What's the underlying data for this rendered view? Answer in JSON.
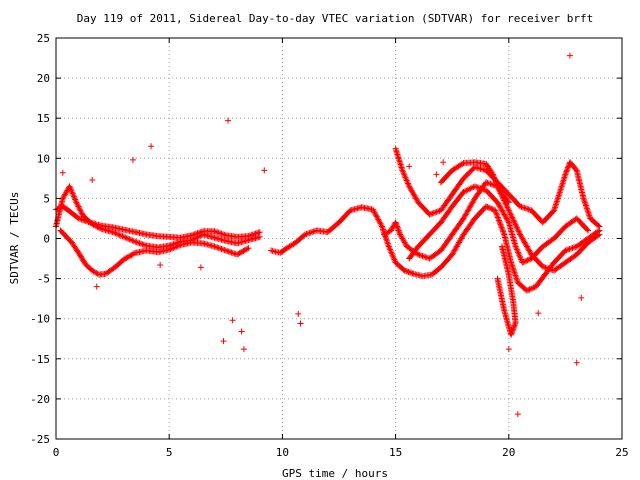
{
  "chart_data": {
    "type": "scatter",
    "title": "Day 119 of 2011, Sidereal Day-to-day VTEC variation (SDTVAR) for receiver brft",
    "xlabel": "GPS time / hours",
    "ylabel": "SDTVAR / TECUs",
    "xlim": [
      0,
      25
    ],
    "ylim": [
      -25,
      25
    ],
    "xticks": [
      0,
      5,
      10,
      15,
      20,
      25
    ],
    "yticks": [
      25,
      20,
      15,
      10,
      5,
      0,
      -5,
      -10,
      -15,
      -20,
      -25
    ],
    "grid": true,
    "marker": "+",
    "color": "#ff0000",
    "outliers": [
      [
        22.7,
        22.8
      ],
      [
        7.6,
        14.7
      ],
      [
        4.2,
        11.5
      ],
      [
        3.4,
        9.8
      ],
      [
        7.4,
        -12.8
      ],
      [
        8.3,
        -13.8
      ],
      [
        8.2,
        -11.6
      ],
      [
        7.8,
        -10.2
      ],
      [
        10.8,
        -10.6
      ],
      [
        10.7,
        -9.4
      ],
      [
        20.4,
        -21.9
      ],
      [
        23.0,
        -15.5
      ],
      [
        23.2,
        -7.4
      ],
      [
        21.3,
        -9.3
      ],
      [
        20.0,
        -13.8
      ],
      [
        6.4,
        -3.6
      ],
      [
        4.6,
        -3.3
      ],
      [
        1.8,
        -6.0
      ],
      [
        9.2,
        8.5
      ],
      [
        17.1,
        9.5
      ],
      [
        15.6,
        9.0
      ],
      [
        16.8,
        8.0
      ],
      [
        0.3,
        8.2
      ],
      [
        1.6,
        7.3
      ]
    ],
    "series": [
      {
        "segments": [
          [
            [
              0.0,
              3.6
            ],
            [
              0.3,
              4.0
            ],
            [
              0.6,
              3.4
            ],
            [
              1.0,
              2.5
            ],
            [
              1.5,
              2.0
            ],
            [
              2.0,
              1.6
            ],
            [
              2.5,
              1.4
            ],
            [
              3.0,
              1.1
            ],
            [
              3.5,
              0.8
            ],
            [
              4.0,
              0.5
            ],
            [
              4.5,
              0.3
            ],
            [
              5.0,
              0.2
            ],
            [
              5.5,
              0.1
            ],
            [
              6.0,
              0.4
            ],
            [
              6.5,
              0.9
            ],
            [
              7.0,
              0.9
            ],
            [
              7.5,
              0.4
            ],
            [
              8.0,
              0.2
            ],
            [
              8.5,
              0.3
            ],
            [
              9.0,
              0.8
            ]
          ],
          [
            [
              0.0,
              1.5
            ],
            [
              0.3,
              5.0
            ],
            [
              0.6,
              6.5
            ],
            [
              0.9,
              4.5
            ],
            [
              1.2,
              2.8
            ],
            [
              1.6,
              1.8
            ],
            [
              2.0,
              1.2
            ],
            [
              2.5,
              0.8
            ],
            [
              3.0,
              0.2
            ],
            [
              3.5,
              -0.4
            ],
            [
              4.0,
              -0.9
            ],
            [
              4.5,
              -1.1
            ],
            [
              5.0,
              -0.9
            ],
            [
              5.5,
              -0.4
            ],
            [
              6.0,
              -0.2
            ],
            [
              6.5,
              0.5
            ],
            [
              7.0,
              0.1
            ],
            [
              7.5,
              -0.3
            ],
            [
              8.0,
              -0.6
            ],
            [
              8.5,
              -0.2
            ],
            [
              9.0,
              0.2
            ]
          ],
          [
            [
              0.2,
              1.0
            ],
            [
              0.7,
              -0.5
            ],
            [
              1.0,
              -1.8
            ],
            [
              1.3,
              -3.2
            ],
            [
              1.6,
              -4.0
            ],
            [
              1.9,
              -4.5
            ],
            [
              2.2,
              -4.4
            ],
            [
              2.6,
              -3.6
            ],
            [
              3.0,
              -2.6
            ],
            [
              3.5,
              -1.8
            ],
            [
              4.0,
              -1.5
            ],
            [
              4.5,
              -1.7
            ],
            [
              5.0,
              -1.4
            ],
            [
              5.5,
              -0.8
            ],
            [
              6.0,
              -0.5
            ],
            [
              6.5,
              -0.6
            ],
            [
              7.0,
              -1.0
            ],
            [
              7.5,
              -1.5
            ],
            [
              8.0,
              -2.0
            ],
            [
              8.5,
              -1.2
            ]
          ],
          [
            [
              9.5,
              -1.5
            ],
            [
              9.9,
              -1.8
            ],
            [
              10.2,
              -1.2
            ],
            [
              10.6,
              -0.5
            ],
            [
              11.0,
              0.5
            ],
            [
              11.5,
              1.0
            ],
            [
              12.0,
              0.8
            ],
            [
              12.5,
              2.0
            ],
            [
              13.0,
              3.5
            ],
            [
              13.5,
              3.9
            ],
            [
              14.0,
              3.6
            ],
            [
              14.4,
              1.5
            ],
            [
              14.7,
              -1.0
            ],
            [
              15.0,
              -3.0
            ],
            [
              15.4,
              -4.0
            ],
            [
              15.8,
              -4.4
            ],
            [
              16.2,
              -4.7
            ],
            [
              16.6,
              -4.5
            ],
            [
              17.0,
              -3.6
            ],
            [
              17.5,
              -2.0
            ],
            [
              18.0,
              0.5
            ],
            [
              18.5,
              2.5
            ],
            [
              19.0,
              4.0
            ],
            [
              19.4,
              3.5
            ],
            [
              19.8,
              0.5
            ],
            [
              20.1,
              -3.0
            ],
            [
              20.4,
              -5.5
            ],
            [
              20.8,
              -6.5
            ],
            [
              21.2,
              -6.0
            ],
            [
              21.6,
              -4.5
            ],
            [
              22.0,
              -3.0
            ],
            [
              22.5,
              -1.5
            ],
            [
              23.0,
              -1.0
            ],
            [
              23.5,
              0.0
            ],
            [
              24.0,
              1.0
            ]
          ],
          [
            [
              14.5,
              0.5
            ],
            [
              14.8,
              1.0
            ],
            [
              15.0,
              2.0
            ],
            [
              15.2,
              0.5
            ],
            [
              15.5,
              -1.0
            ],
            [
              16.0,
              -2.0
            ],
            [
              16.5,
              -2.5
            ],
            [
              17.0,
              -1.5
            ],
            [
              17.5,
              0.5
            ],
            [
              18.0,
              2.5
            ],
            [
              18.5,
              5.0
            ],
            [
              19.0,
              7.0
            ],
            [
              19.5,
              6.5
            ],
            [
              20.0,
              3.5
            ],
            [
              20.5,
              0.5
            ],
            [
              21.0,
              -2.0
            ],
            [
              21.5,
              -3.5
            ],
            [
              22.0,
              -4.0
            ],
            [
              22.5,
              -3.0
            ],
            [
              23.0,
              -2.0
            ],
            [
              23.5,
              -0.5
            ],
            [
              24.0,
              0.5
            ]
          ],
          [
            [
              15.0,
              11.2
            ],
            [
              15.3,
              8.5
            ],
            [
              15.6,
              6.5
            ],
            [
              16.0,
              4.5
            ],
            [
              16.5,
              3.0
            ],
            [
              17.0,
              3.5
            ],
            [
              17.5,
              5.5
            ],
            [
              18.0,
              7.5
            ],
            [
              18.5,
              8.9
            ],
            [
              19.0,
              8.5
            ],
            [
              19.5,
              7.0
            ],
            [
              20.0,
              5.5
            ],
            [
              20.5,
              4.0
            ],
            [
              21.0,
              3.5
            ],
            [
              21.5,
              2.0
            ],
            [
              22.0,
              3.5
            ],
            [
              22.5,
              8.0
            ],
            [
              22.7,
              9.5
            ],
            [
              23.0,
              8.5
            ],
            [
              23.3,
              5.0
            ],
            [
              23.6,
              2.5
            ],
            [
              24.0,
              1.5
            ]
          ],
          [
            [
              15.6,
              -2.5
            ],
            [
              16.0,
              -1.0
            ],
            [
              16.5,
              0.5
            ],
            [
              17.0,
              2.0
            ],
            [
              17.5,
              4.0
            ],
            [
              18.0,
              5.8
            ],
            [
              18.5,
              6.5
            ],
            [
              19.0,
              6.0
            ],
            [
              19.5,
              4.5
            ],
            [
              20.0,
              2.0
            ],
            [
              20.3,
              -1.0
            ],
            [
              20.6,
              -3.0
            ],
            [
              21.0,
              -2.5
            ],
            [
              21.5,
              -1.0
            ],
            [
              22.0,
              0.0
            ],
            [
              22.5,
              1.5
            ],
            [
              23.0,
              2.5
            ],
            [
              23.5,
              1.0
            ]
          ],
          [
            [
              19.7,
              -1.0
            ],
            [
              20.0,
              -4.5
            ],
            [
              20.2,
              -8.0
            ],
            [
              20.3,
              -10.5
            ],
            [
              20.1,
              -12.0
            ],
            [
              19.8,
              -9.0
            ],
            [
              19.5,
              -5.0
            ]
          ],
          [
            [
              17.0,
              7.0
            ],
            [
              17.5,
              8.5
            ],
            [
              18.0,
              9.4
            ],
            [
              18.5,
              9.5
            ],
            [
              19.0,
              9.3
            ],
            [
              19.3,
              8.0
            ],
            [
              19.6,
              6.0
            ],
            [
              20.0,
              4.5
            ]
          ]
        ]
      }
    ]
  }
}
